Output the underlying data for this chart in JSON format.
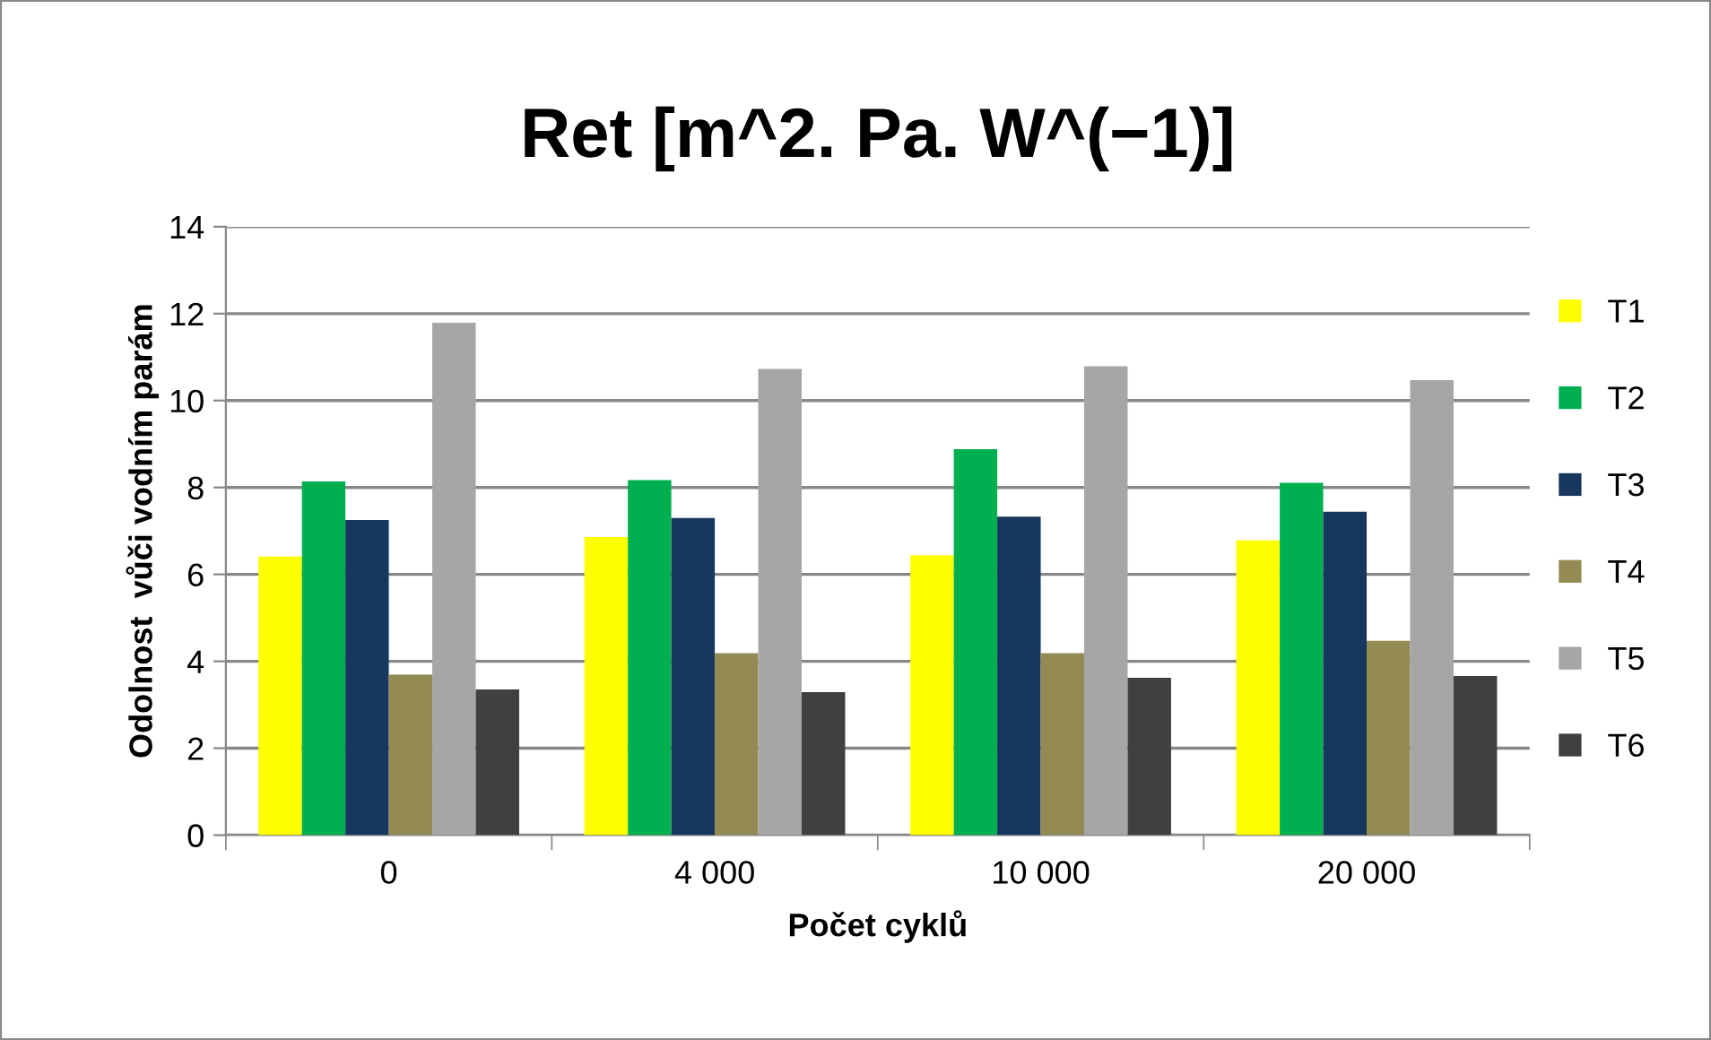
{
  "chart_data": {
    "type": "bar",
    "title": "Ret [m^2. Pa. W^(−1)]",
    "xlabel": "Počet cyklů",
    "ylabel": "Odolnost  vůči vodním parám",
    "categories": [
      "0",
      "4 000",
      "10 000",
      "20 000"
    ],
    "series": [
      {
        "name": "T1",
        "color": "#ffff00",
        "values": [
          6.41,
          6.86,
          6.44,
          6.78
        ]
      },
      {
        "name": "T2",
        "color": "#00b050",
        "values": [
          8.14,
          8.17,
          8.88,
          8.11
        ]
      },
      {
        "name": "T3",
        "color": "#17375e",
        "values": [
          7.25,
          7.3,
          7.33,
          7.44
        ]
      },
      {
        "name": "T4",
        "color": "#948a54",
        "values": [
          3.69,
          4.19,
          4.19,
          4.47
        ]
      },
      {
        "name": "T5",
        "color": "#a6a6a6",
        "values": [
          11.79,
          10.73,
          10.79,
          10.47
        ]
      },
      {
        "name": "T6",
        "color": "#404040",
        "values": [
          3.35,
          3.29,
          3.62,
          3.66
        ]
      }
    ],
    "ylim": [
      0,
      14
    ],
    "yticks": [
      0,
      2,
      4,
      6,
      8,
      10,
      12,
      14
    ],
    "grid": "y",
    "legend": "right"
  }
}
